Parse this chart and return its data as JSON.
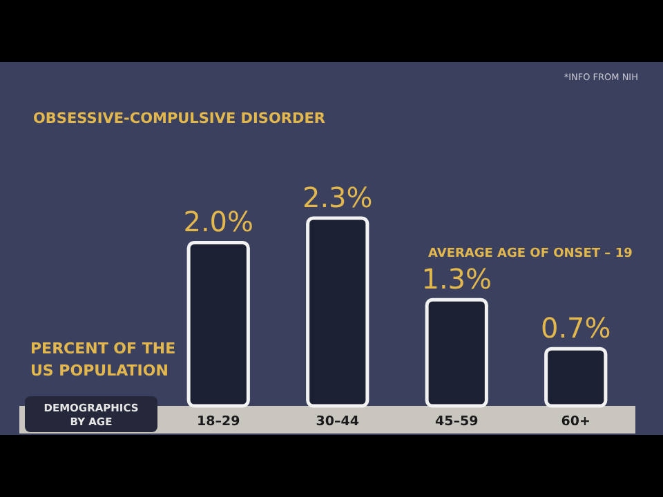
{
  "chart_data": {
    "type": "bar",
    "title": "OBSESSIVE-COMPULSIVE DISORDER",
    "xlabel": "DEMOGRAPHICS\nBY AGE",
    "ylabel": "PERCENT OF THE\nUS POPULATION",
    "relative": false,
    "categories": [
      "18–29",
      "30–44",
      "45–59",
      "60+"
    ],
    "values": [
      2.0,
      2.3,
      1.3,
      0.7
    ],
    "value_labels": [
      "2.0%",
      "2.3%",
      "1.3%",
      "0.7%"
    ],
    "color": "#1b2033",
    "annotations": [
      "*INFO FROM NIH",
      "AVERAGE AGE OF ONSET – 19"
    ]
  }
}
